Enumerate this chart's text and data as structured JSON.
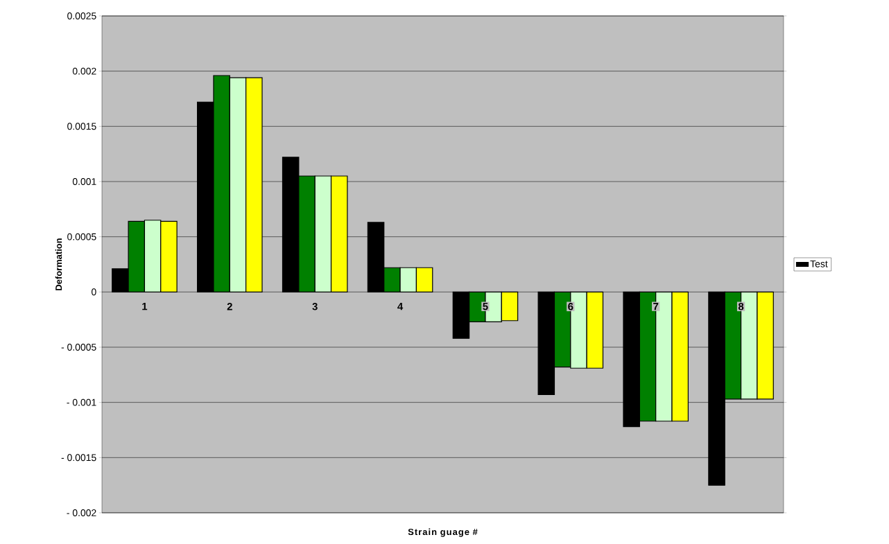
{
  "chart_data": {
    "type": "bar",
    "xlabel": "Strain guage #",
    "ylabel": "Deformation",
    "categories": [
      "1",
      "2",
      "3",
      "4",
      "5",
      "6",
      "7",
      "8"
    ],
    "series": [
      {
        "name": "Test",
        "color": "#000000",
        "values": [
          0.00021,
          0.00172,
          0.00122,
          0.00063,
          -0.00042,
          -0.00093,
          -0.00122,
          -0.00175
        ]
      },
      {
        "color": "#008000",
        "values": [
          0.00064,
          0.00196,
          0.00105,
          0.00022,
          -0.00027,
          -0.00068,
          -0.00117,
          -0.00097
        ]
      },
      {
        "color": "#ccffcc",
        "values": [
          0.00065,
          0.00194,
          0.00105,
          0.00022,
          -0.00027,
          -0.00069,
          -0.00117,
          -0.00097
        ]
      },
      {
        "color": "#ffff00",
        "values": [
          0.00064,
          0.00194,
          0.00105,
          0.00022,
          -0.00026,
          -0.00069,
          -0.00117,
          -0.00097
        ]
      }
    ],
    "ylim": [
      -0.002,
      0.0025
    ],
    "yticks": [
      {
        "value": -0.002,
        "label": "- 0.002"
      },
      {
        "value": -0.0015,
        "label": "- 0.0015"
      },
      {
        "value": -0.001,
        "label": "- 0.001"
      },
      {
        "value": -0.0005,
        "label": "- 0.0005"
      },
      0,
      0.0005,
      0.001,
      0.0015,
      0.002,
      0.0025
    ],
    "grid": "y",
    "legend": "right"
  }
}
